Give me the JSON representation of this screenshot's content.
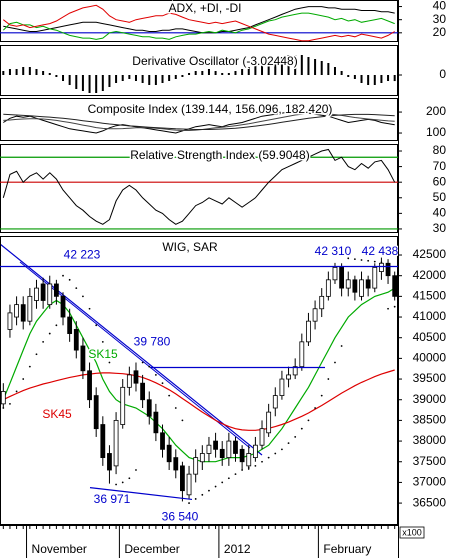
{
  "chart_data": [
    {
      "type": "line",
      "title": "ADX, +DI, -DI",
      "ylim": [
        13,
        45
      ],
      "yticks": [
        20,
        30,
        40
      ],
      "hlines": [
        {
          "value": 20,
          "color": "#0000cc"
        }
      ],
      "series": [
        {
          "color": "#000000",
          "values": [
            25,
            24,
            23,
            22,
            21,
            21,
            22,
            23,
            24,
            25,
            26,
            27,
            28,
            28,
            28,
            27,
            26,
            25,
            24,
            23,
            22,
            22,
            21,
            21,
            22,
            22,
            23,
            23,
            22,
            21,
            20,
            20,
            20,
            21,
            21,
            22,
            23,
            24,
            26,
            28,
            30,
            32,
            34,
            36,
            38,
            39,
            40,
            40,
            40,
            39,
            39,
            38,
            38,
            38,
            37,
            37,
            37,
            36,
            36,
            35
          ]
        },
        {
          "color": "#00aa00",
          "values": [
            22,
            27,
            28,
            26,
            26,
            24,
            25,
            23,
            22,
            20,
            18,
            17,
            16,
            16,
            15,
            16,
            20,
            21,
            20,
            19,
            18,
            17,
            17,
            16,
            16,
            15,
            17,
            18,
            19,
            19,
            20,
            21,
            20,
            22,
            21,
            20,
            22,
            23,
            25,
            27,
            29,
            30,
            32,
            33,
            34,
            35,
            35,
            34,
            33,
            32,
            30,
            31,
            29,
            30,
            28,
            29,
            30,
            31,
            29,
            27
          ]
        },
        {
          "color": "#e00000",
          "values": [
            30,
            26,
            25,
            26,
            24,
            25,
            26,
            27,
            29,
            32,
            35,
            37,
            39,
            40,
            41,
            38,
            33,
            30,
            29,
            28,
            30,
            31,
            32,
            33,
            33,
            35,
            34,
            32,
            30,
            29,
            28,
            27,
            28,
            27,
            28,
            29,
            27,
            25,
            23,
            21,
            19,
            18,
            17,
            16,
            15,
            14,
            14,
            15,
            16,
            17,
            18,
            17,
            18,
            17,
            19,
            18,
            17,
            16,
            18,
            21
          ]
        }
      ]
    },
    {
      "type": "bar",
      "title": "Derivative Oscillator (-3.02448)",
      "ylim": [
        -10.5,
        15
      ],
      "yticks": [
        0
      ],
      "color": "#000000",
      "values": [
        2,
        3,
        3,
        4,
        4,
        3,
        2,
        1,
        -1,
        -3,
        -5,
        -7,
        -8,
        -9,
        -9,
        -8,
        -6,
        -4,
        -3,
        -2,
        -3,
        -4,
        -5,
        -5,
        -4,
        -3,
        -2,
        -1,
        1,
        2,
        2,
        3,
        2,
        1,
        1,
        2,
        3,
        4,
        5,
        6,
        7,
        8,
        9,
        10,
        10,
        10,
        9,
        8,
        7,
        6,
        4,
        2,
        -1,
        -2,
        -4,
        -5,
        -5,
        -4,
        -3,
        -3.02448
      ]
    },
    {
      "type": "line",
      "title": "Composite Index (139.144, 156.096, 182.420)",
      "ylim": [
        62,
        267
      ],
      "yticks": [
        100,
        200
      ],
      "series": [
        {
          "color": "#000000",
          "values": [
            150,
            170,
            180,
            175,
            180,
            170,
            160,
            150,
            140,
            130,
            120,
            115,
            110,
            105,
            100,
            110,
            125,
            135,
            140,
            135,
            130,
            125,
            120,
            115,
            110,
            105,
            100,
            110,
            120,
            130,
            135,
            140,
            135,
            130,
            140,
            145,
            150,
            160,
            170,
            180,
            185,
            190,
            195,
            200,
            205,
            200,
            195,
            190,
            185,
            180,
            170,
            160,
            150,
            155,
            160,
            165,
            160,
            150,
            145,
            139.144
          ]
        },
        {
          "color": "#444444",
          "values": [
            160,
            162,
            165,
            167,
            168,
            168,
            167,
            164,
            160,
            155,
            150,
            144,
            138,
            132,
            126,
            122,
            120,
            120,
            121,
            123,
            125,
            126,
            125,
            123,
            120,
            117,
            114,
            112,
            112,
            114,
            117,
            121,
            125,
            128,
            131,
            135,
            139,
            144,
            150,
            156,
            162,
            168,
            174,
            180,
            186,
            190,
            193,
            194,
            193,
            191,
            188,
            184,
            179,
            174,
            170,
            167,
            164,
            161,
            158,
            156.096
          ]
        },
        {
          "color": "#222222",
          "values": [
            190,
            188,
            186,
            184,
            182,
            180,
            178,
            176,
            173,
            170,
            167,
            163,
            159,
            155,
            151,
            147,
            143,
            140,
            137,
            134,
            132,
            130,
            128,
            126,
            124,
            122,
            120,
            119,
            118,
            117,
            117,
            117,
            118,
            119,
            121,
            123,
            126,
            129,
            133,
            137,
            141,
            146,
            151,
            156,
            161,
            166,
            170,
            174,
            178,
            181,
            184,
            186,
            188,
            189,
            189,
            189,
            188,
            186,
            184,
            182.42
          ]
        }
      ]
    },
    {
      "type": "line",
      "title": "Relative Strength Index (59.9048)",
      "ylim": [
        27.4,
        84.5
      ],
      "yticks": [
        30,
        40,
        50,
        60,
        70,
        80
      ],
      "hlines": [
        {
          "value": 76,
          "color": "#009900"
        },
        {
          "value": 60,
          "color": "#cc0000"
        },
        {
          "value": 30,
          "color": "#009900"
        }
      ],
      "series": [
        {
          "color": "#000000",
          "values": [
            50,
            65,
            67,
            60,
            64,
            66,
            62,
            66,
            62,
            55,
            50,
            45,
            42,
            38,
            35,
            33,
            36,
            48,
            55,
            58,
            55,
            50,
            46,
            42,
            40,
            36,
            33,
            35,
            40,
            45,
            47,
            50,
            48,
            46,
            50,
            47,
            44,
            47,
            50,
            55,
            60,
            64,
            68,
            70,
            72,
            74,
            76,
            78,
            80,
            81,
            74,
            76,
            70,
            68,
            72,
            69,
            73,
            74,
            68,
            59.9048
          ]
        }
      ]
    },
    {
      "type": "candlestick",
      "title": "WIG, SAR",
      "ylim": [
        35970,
        42960
      ],
      "yticks": [
        36500,
        37000,
        37500,
        38000,
        38500,
        39000,
        39500,
        40000,
        40500,
        41000,
        41500,
        42000,
        42500
      ],
      "unit_label": "x100",
      "categories": [
        null,
        null,
        null,
        null,
        "November",
        null,
        null,
        null,
        null,
        null,
        null,
        null,
        null,
        null,
        null,
        null,
        null,
        null,
        "December",
        null,
        null,
        null,
        null,
        null,
        null,
        null,
        null,
        null,
        null,
        null,
        null,
        null,
        null,
        "2012",
        null,
        null,
        null,
        null,
        null,
        null,
        null,
        null,
        null,
        null,
        null,
        null,
        null,
        null,
        "February",
        null,
        null,
        null,
        null,
        null,
        null,
        null,
        null,
        null,
        null,
        null
      ],
      "open": [
        38900,
        40700,
        41000,
        41300,
        40900,
        41400,
        41800,
        41300,
        41800,
        41500,
        41000,
        40700,
        40300,
        39700,
        39100,
        38400,
        37700,
        37400,
        38400,
        39300,
        39700,
        39400,
        39000,
        38700,
        38200,
        37900,
        37600,
        37400,
        36700,
        37200,
        37500,
        37700,
        38000,
        37800,
        37600,
        38000,
        37800,
        37400,
        37600,
        37900,
        38200,
        38800,
        39100,
        39500,
        39600,
        39800,
        40400,
        40900,
        41200,
        41500,
        41900,
        42200,
        41700,
        41900,
        41500,
        41900,
        41700,
        42100,
        42300,
        42000
      ],
      "high": [
        39400,
        41300,
        41500,
        41500,
        41700,
        41900,
        41950,
        42000,
        41900,
        41600,
        41200,
        40900,
        40500,
        39900,
        39300,
        38600,
        37900,
        38700,
        39500,
        39800,
        39900,
        39600,
        39200,
        38900,
        38400,
        38100,
        37800,
        37500,
        37400,
        37800,
        37900,
        38100,
        38200,
        38000,
        38200,
        38100,
        37900,
        37900,
        38100,
        38500,
        38900,
        39300,
        39700,
        39800,
        40000,
        40600,
        41100,
        41400,
        41700,
        42100,
        42310,
        42300,
        42100,
        42000,
        42100,
        42000,
        42300,
        42438,
        42400,
        42100
      ],
      "low": [
        38800,
        40500,
        40800,
        40700,
        40800,
        41200,
        41200,
        41200,
        41300,
        40800,
        40400,
        40000,
        39500,
        38800,
        38100,
        37400,
        36971,
        37200,
        38300,
        39100,
        39200,
        38800,
        38400,
        38000,
        37600,
        37300,
        37100,
        36540,
        36600,
        37000,
        37300,
        37500,
        37600,
        37400,
        37400,
        37500,
        37300,
        37300,
        37500,
        37800,
        38100,
        38600,
        39000,
        39300,
        39500,
        39700,
        40300,
        40700,
        41000,
        41400,
        41800,
        41500,
        41500,
        41400,
        41400,
        41500,
        41600,
        41900,
        41800,
        41400
      ],
      "close": [
        39200,
        41100,
        41300,
        40900,
        41500,
        41700,
        41400,
        41800,
        41500,
        41000,
        40600,
        40200,
        39700,
        39000,
        38300,
        37600,
        37300,
        38500,
        39300,
        39600,
        39400,
        39000,
        38600,
        38200,
        37800,
        37500,
        37300,
        36800,
        37200,
        37600,
        37700,
        37900,
        37800,
        37600,
        38000,
        37700,
        37500,
        37700,
        37900,
        38300,
        38700,
        39100,
        39500,
        39600,
        39800,
        40400,
        40900,
        41200,
        41500,
        41900,
        42200,
        41700,
        41900,
        41600,
        41900,
        41700,
        42200,
        42300,
        42000,
        41500
      ],
      "series": [
        {
          "name": "SK15",
          "color": "#00aa00",
          "values": [
            39000,
            39400,
            39800,
            40200,
            40600,
            40900,
            41100,
            41300,
            41400,
            41300,
            41100,
            40800,
            40500,
            40200,
            39900,
            39500,
            39200,
            39000,
            38900,
            38850,
            38800,
            38700,
            38600,
            38450,
            38300,
            38100,
            37900,
            37750,
            37600,
            37550,
            37500,
            37500,
            37500,
            37550,
            37600,
            37600,
            37600,
            37650,
            37700,
            37800,
            37900,
            38100,
            38300,
            38550,
            38800,
            39050,
            39300,
            39600,
            39900,
            40200,
            40500,
            40750,
            41000,
            41150,
            41300,
            41400,
            41500,
            41550,
            41600,
            41700
          ]
        },
        {
          "name": "SK45",
          "color": "#dd0000",
          "values": [
            39000,
            39080,
            39150,
            39220,
            39280,
            39330,
            39380,
            39420,
            39460,
            39500,
            39540,
            39570,
            39600,
            39620,
            39640,
            39650,
            39650,
            39640,
            39630,
            39610,
            39580,
            39540,
            39480,
            39410,
            39330,
            39240,
            39140,
            39030,
            38920,
            38810,
            38700,
            38600,
            38500,
            38420,
            38350,
            38300,
            38270,
            38260,
            38260,
            38280,
            38310,
            38350,
            38400,
            38460,
            38530,
            38600,
            38680,
            38770,
            38860,
            38960,
            39060,
            39160,
            39250,
            39340,
            39420,
            39490,
            39560,
            39620,
            39670,
            39720
          ]
        },
        {
          "color": "#000000",
          "style": "dots",
          "values": [
            38800,
            38900,
            39200,
            39500,
            39800,
            40100,
            40400,
            40600,
            40800,
            42000,
            41900,
            41700,
            41500,
            41200,
            40800,
            40400,
            39900,
            36950,
            37000,
            37100,
            37300,
            39900,
            39800,
            39600,
            39400,
            39100,
            38800,
            38500,
            36500,
            36600,
            36700,
            36800,
            36900,
            37000,
            37100,
            37200,
            37300,
            37350,
            37400,
            37500,
            37600,
            37700,
            37800,
            37950,
            38100,
            38300,
            38500,
            38800,
            39100,
            39500,
            39900,
            40300,
            42420,
            42400,
            42380,
            42360,
            42340,
            42320,
            41200,
            41250
          ]
        }
      ],
      "annotations": [
        {
          "text": "42 223",
          "value": 42223,
          "color": "#0000cc"
        },
        {
          "text": "39 780",
          "value": 39780,
          "color": "#0000cc"
        },
        {
          "text": "36 971",
          "value": 36971,
          "color": "#0000cc"
        },
        {
          "text": "36 540",
          "value": 36540,
          "color": "#0000cc"
        },
        {
          "text": "42 310",
          "value": 42310,
          "color": "#0000cc"
        },
        {
          "text": "42 438",
          "value": 42438,
          "color": "#0000cc"
        }
      ]
    }
  ]
}
